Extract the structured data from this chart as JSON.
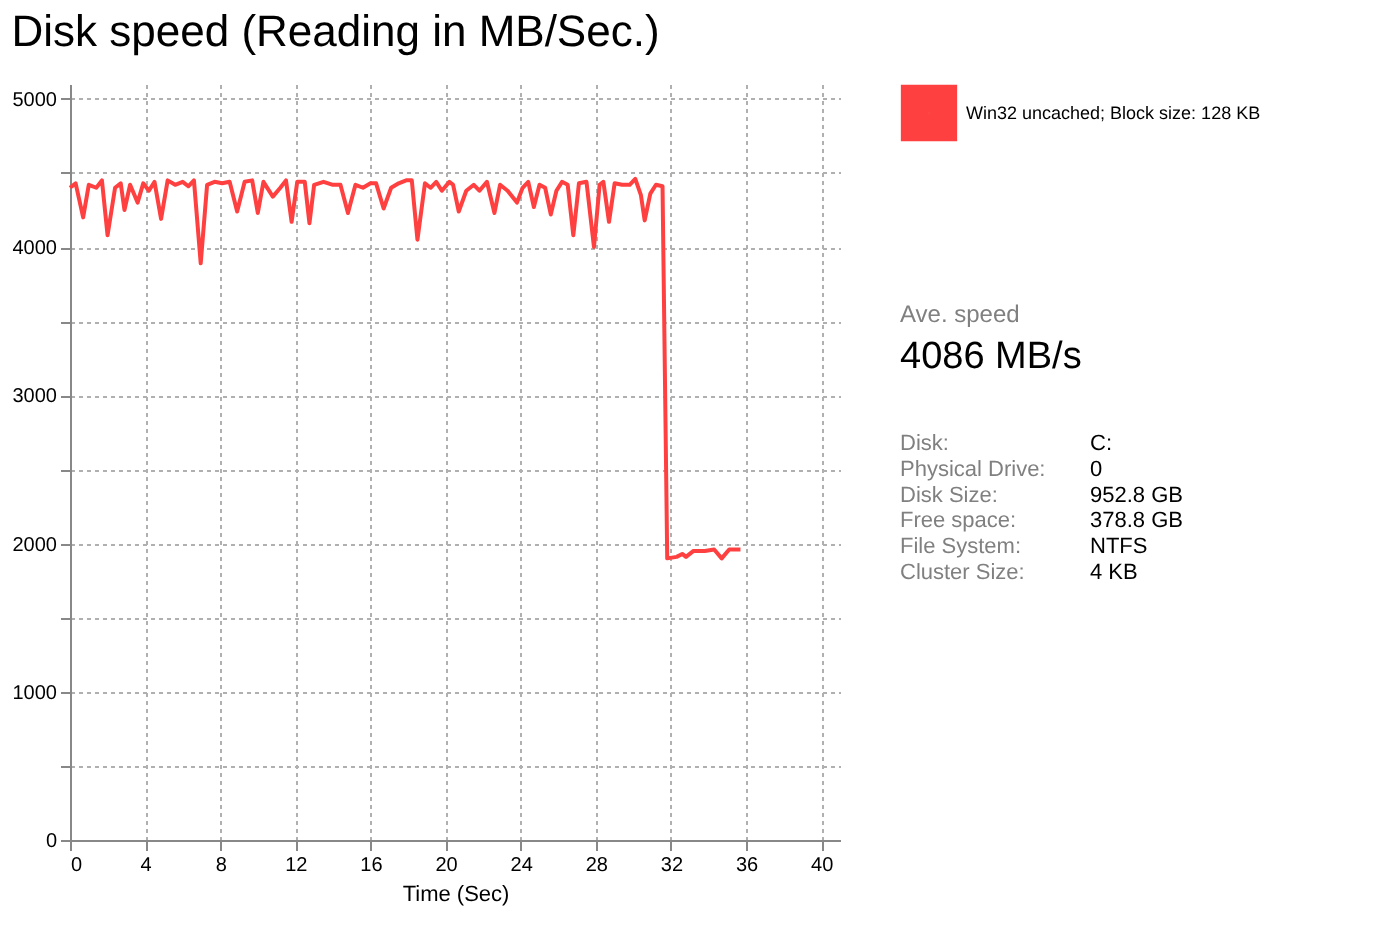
{
  "chart_data": {
    "type": "line",
    "title": "Disk speed (Reading in MB/Sec.)",
    "xlabel": "Time (Sec)",
    "series": [
      {
        "name": "Win32 uncached; Block size: 128 KB",
        "color": "#ff4040",
        "x": [
          0,
          0.3,
          0.7,
          1.0,
          1.4,
          1.7,
          2.0,
          2.4,
          2.7,
          2.9,
          3.2,
          3.6,
          3.9,
          4.2,
          4.5,
          4.85,
          5.2,
          5.6,
          6.0,
          6.3,
          6.6,
          6.96,
          7.3,
          7.7,
          8.1,
          8.5,
          8.9,
          9.3,
          9.7,
          10.0,
          10.3,
          10.8,
          11.2,
          11.5,
          11.8,
          12.1,
          12.5,
          12.75,
          13.0,
          13.5,
          14.0,
          14.4,
          14.8,
          15.2,
          15.6,
          16.0,
          16.3,
          16.7,
          17.1,
          17.5,
          17.9,
          18.2,
          18.5,
          18.9,
          19.2,
          19.5,
          19.8,
          20.2,
          20.4,
          20.7,
          21.1,
          21.5,
          21.8,
          22.2,
          22.6,
          22.9,
          23.3,
          23.8,
          24.1,
          24.4,
          24.7,
          25.0,
          25.3,
          25.6,
          25.9,
          26.2,
          26.5,
          26.8,
          27.1,
          27.5,
          27.9,
          28.2,
          28.4,
          28.7,
          29.0,
          29.4,
          29.8,
          30.1,
          30.4,
          30.6,
          30.9,
          31.2,
          31.55,
          31.8,
          32.3,
          32.6,
          32.8,
          33.2,
          33.8,
          34.3,
          34.7,
          35.1,
          35.7
        ],
        "values": [
          4400,
          4430,
          4200,
          4420,
          4400,
          4450,
          4080,
          4400,
          4430,
          4250,
          4420,
          4300,
          4430,
          4380,
          4440,
          4190,
          4450,
          4420,
          4440,
          4410,
          4450,
          3890,
          4420,
          4440,
          4430,
          4440,
          4240,
          4440,
          4450,
          4230,
          4440,
          4340,
          4400,
          4450,
          4170,
          4440,
          4440,
          4160,
          4420,
          4440,
          4420,
          4420,
          4230,
          4420,
          4400,
          4430,
          4430,
          4260,
          4400,
          4430,
          4450,
          4450,
          4050,
          4430,
          4400,
          4440,
          4380,
          4440,
          4420,
          4240,
          4380,
          4420,
          4380,
          4440,
          4230,
          4420,
          4380,
          4300,
          4400,
          4440,
          4270,
          4420,
          4400,
          4220,
          4380,
          4440,
          4420,
          4080,
          4430,
          4440,
          4000,
          4420,
          4440,
          4170,
          4430,
          4420,
          4420,
          4460,
          4350,
          4180,
          4360,
          4420,
          4410,
          1900,
          1910,
          1930,
          1910,
          1950,
          1950,
          1960,
          1900,
          1960,
          1960
        ]
      }
    ],
    "xlim": [
      0,
      41
    ],
    "xticks": [
      0,
      4,
      8,
      12,
      16,
      20,
      24,
      28,
      32,
      36,
      40
    ],
    "ylim": [
      0,
      5100
    ],
    "yticks": [
      0,
      {
        "value": 500,
        "label": null
      },
      1000,
      {
        "value": 1500,
        "label": null
      },
      2000,
      {
        "value": 2500,
        "label": null
      },
      3000,
      {
        "value": 3500,
        "label": null
      },
      4000,
      {
        "value": 4500,
        "label": null
      },
      5000
    ],
    "grid": true,
    "legend": "top right",
    "marker": "none",
    "line_style": "solid",
    "annotations": [
      "Ave. speed",
      "4086 MB/s",
      "Disk:",
      "C:",
      "Physical Drive:",
      "0",
      "Disk Size:",
      "952.8 GB",
      "Free space:",
      "378.8 GB",
      "File System:",
      "NTFS",
      "Cluster Size:",
      "4 KB"
    ]
  }
}
